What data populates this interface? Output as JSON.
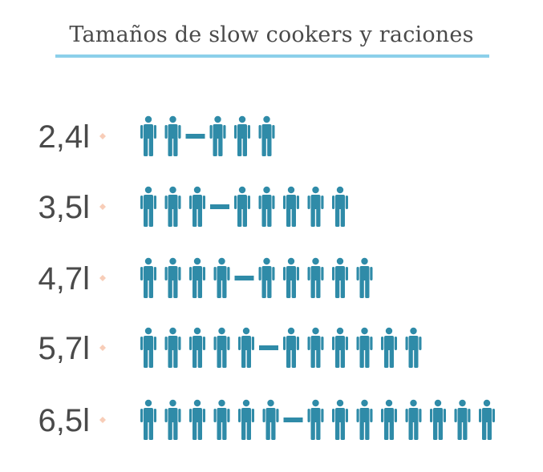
{
  "title": "Tamaños de slow cookers y raciones",
  "colors": {
    "icon": "#2f8ba8",
    "bullet": "#f8cdb8",
    "label": "#4a4a4a",
    "rule": "#8cd0ea"
  },
  "chart_data": {
    "type": "pictogram",
    "icon": "person-icon",
    "unit": "personas",
    "rows": [
      {
        "label": "2,4l",
        "min": 2,
        "max": 3
      },
      {
        "label": "3,5l",
        "min": 3,
        "max": 5
      },
      {
        "label": "4,7l",
        "min": 4,
        "max": 5
      },
      {
        "label": "5,7l",
        "min": 5,
        "max": 6
      },
      {
        "label": "6,5l",
        "min": 6,
        "max": 8
      }
    ]
  }
}
